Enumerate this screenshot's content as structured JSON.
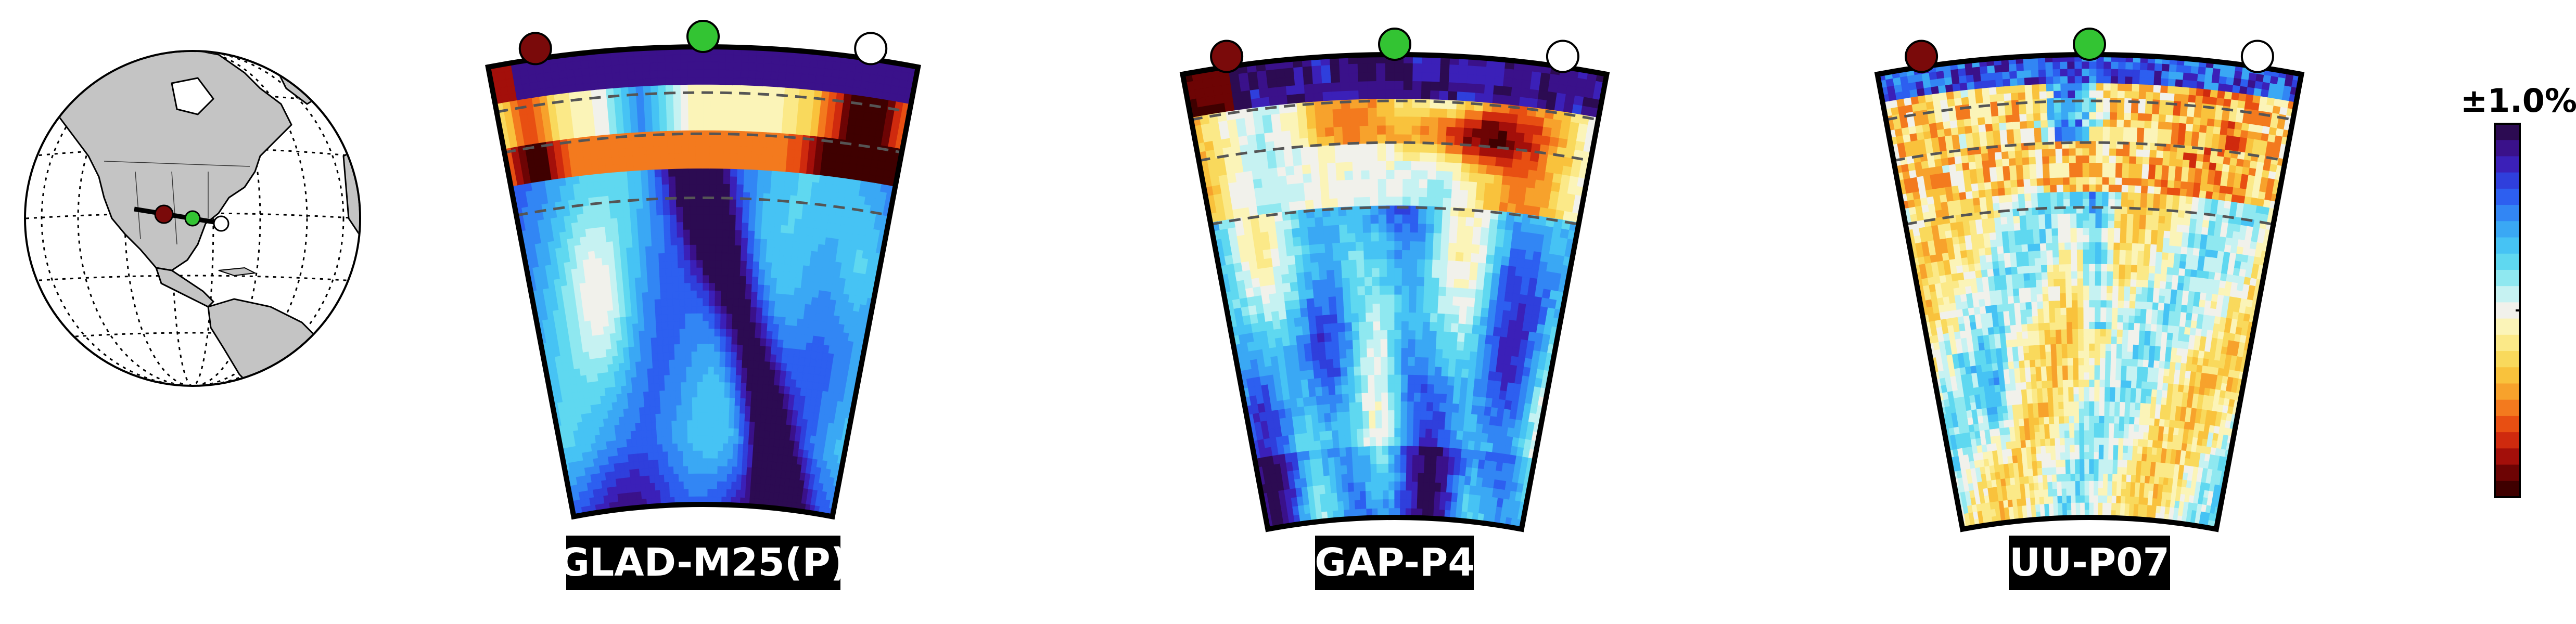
{
  "figure": {
    "panels": [
      {
        "label": "GLAD-M25(P)",
        "style": "smooth"
      },
      {
        "label": "GAP-P4",
        "style": "blocky"
      },
      {
        "label": "UU-P07",
        "style": "noisy"
      }
    ],
    "markers": [
      {
        "color": "#7a0a0a",
        "name": "west"
      },
      {
        "color": "#33c433",
        "name": "middle"
      },
      {
        "color": "#ffffff",
        "name": "east"
      }
    ],
    "colorbar": {
      "label": "±1.0%",
      "colors_top_to_bottom": [
        "#2c0b52",
        "#3a118a",
        "#3b20b8",
        "#2f3fdc",
        "#2d5ff0",
        "#3286f4",
        "#3aa8f4",
        "#46c3f4",
        "#5fd8f0",
        "#8fe8f0",
        "#c6f2f2",
        "#f1f1eb",
        "#fbf4b8",
        "#fbe988",
        "#f9d95c",
        "#f9c23c",
        "#f7a22c",
        "#f37a1e",
        "#e84f12",
        "#cf2a0e",
        "#a30f0a",
        "#6d0404",
        "#3f0000"
      ]
    }
  }
}
